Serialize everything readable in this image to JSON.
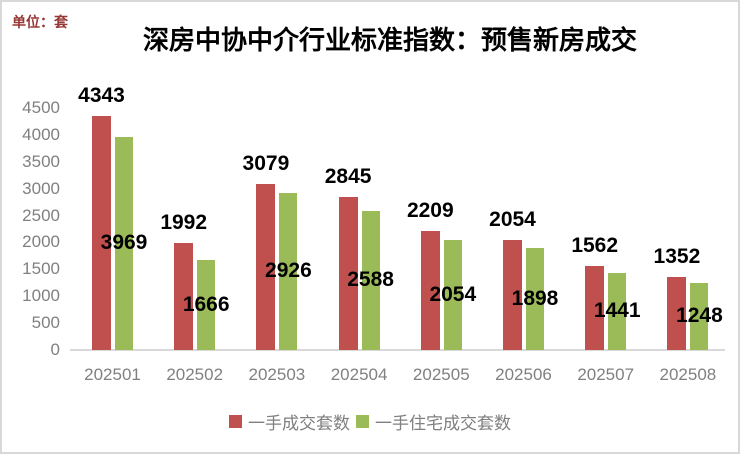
{
  "unit_label": "单位：套",
  "title": "深房中协中介行业标准指数：预售新房成交",
  "chart_data": {
    "type": "bar",
    "title": "深房中协中介行业标准指数：预售新房成交",
    "unit_label": "单位：套",
    "categories": [
      "202501",
      "202502",
      "202503",
      "202504",
      "202505",
      "202506",
      "202507",
      "202508"
    ],
    "series": [
      {
        "name": "一手成交套数",
        "color": "#C0504D",
        "values": [
          4343,
          1992,
          3079,
          2845,
          2209,
          2054,
          1562,
          1352
        ],
        "data_label_position": "above-bar"
      },
      {
        "name": "一手住宅成交套数",
        "color": "#9BBB59",
        "values": [
          3969,
          1666,
          2926,
          2588,
          2054,
          1898,
          1441,
          1248
        ],
        "data_label_position": "center-of-bar"
      }
    ],
    "xlabel": "",
    "ylabel": "",
    "ylim": [
      0,
      4500
    ],
    "ytick_step": 500,
    "yticks": [
      0,
      500,
      1000,
      1500,
      2000,
      2500,
      3000,
      3500,
      4000,
      4500
    ],
    "grid": false,
    "legend_position": "bottom",
    "axis_text_color": "#808080",
    "data_label_color": "#000000",
    "baseline_color": "#D9D9D9"
  }
}
